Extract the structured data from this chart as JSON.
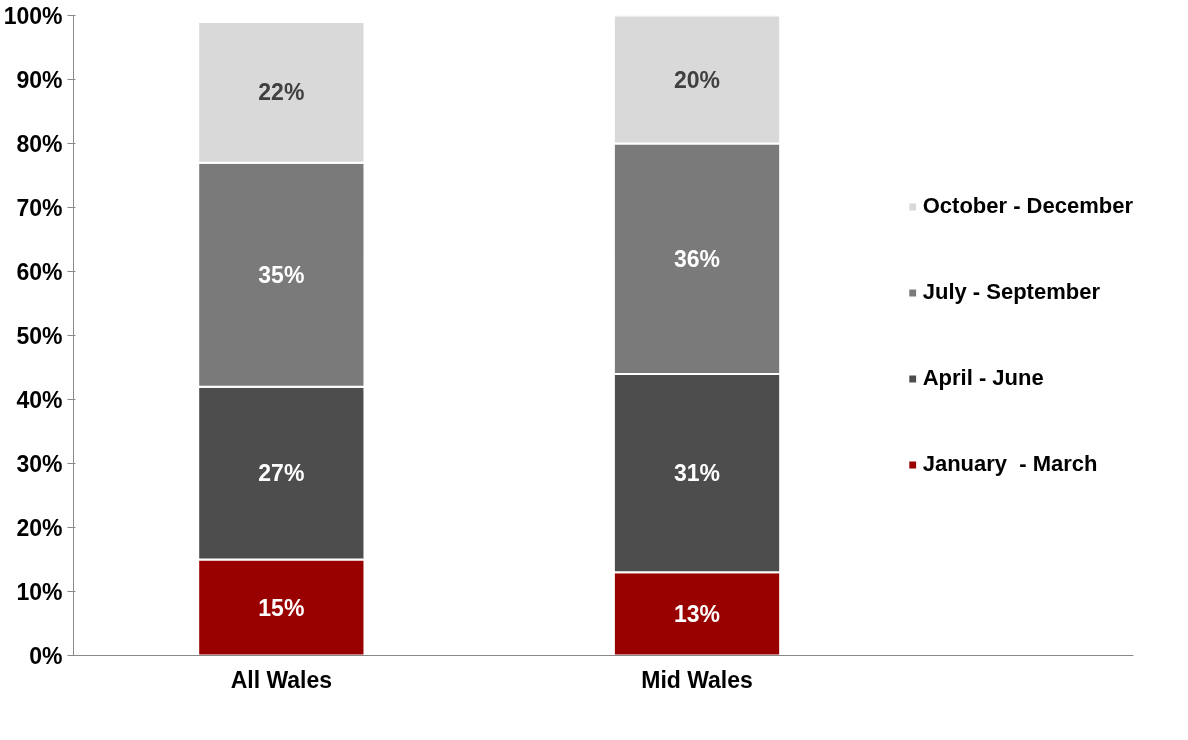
{
  "chart_data": {
    "type": "bar",
    "stacked": true,
    "categories": [
      "All Wales",
      "Mid Wales"
    ],
    "ylim": [
      0,
      100
    ],
    "yticks": [
      {
        "value": 0,
        "label": "0%"
      },
      {
        "value": 10,
        "label": "10%"
      },
      {
        "value": 20,
        "label": "20%"
      },
      {
        "value": 30,
        "label": "30%"
      },
      {
        "value": 40,
        "label": "40%"
      },
      {
        "value": 50,
        "label": "50%"
      },
      {
        "value": 60,
        "label": "60%"
      },
      {
        "value": 70,
        "label": "70%"
      },
      {
        "value": 80,
        "label": "80%"
      },
      {
        "value": 90,
        "label": "90%"
      },
      {
        "value": 100,
        "label": "100%"
      }
    ],
    "legend": "right",
    "series": [
      {
        "name": "January  - March",
        "color": "#990000",
        "values": [
          15,
          13
        ],
        "value_labels": [
          "15%",
          "13%"
        ]
      },
      {
        "name": "April - June",
        "color": "#4d4d4d",
        "values": [
          27,
          31
        ],
        "value_labels": [
          "27%",
          "31%"
        ]
      },
      {
        "name": "July - September",
        "color": "#7a7a7a",
        "values": [
          35,
          36
        ],
        "value_labels": [
          "35%",
          "36%"
        ]
      },
      {
        "name": "October - December",
        "color": "#d9d9d9",
        "values": [
          22,
          20
        ],
        "value_labels": [
          "22%",
          "20%"
        ]
      }
    ]
  }
}
